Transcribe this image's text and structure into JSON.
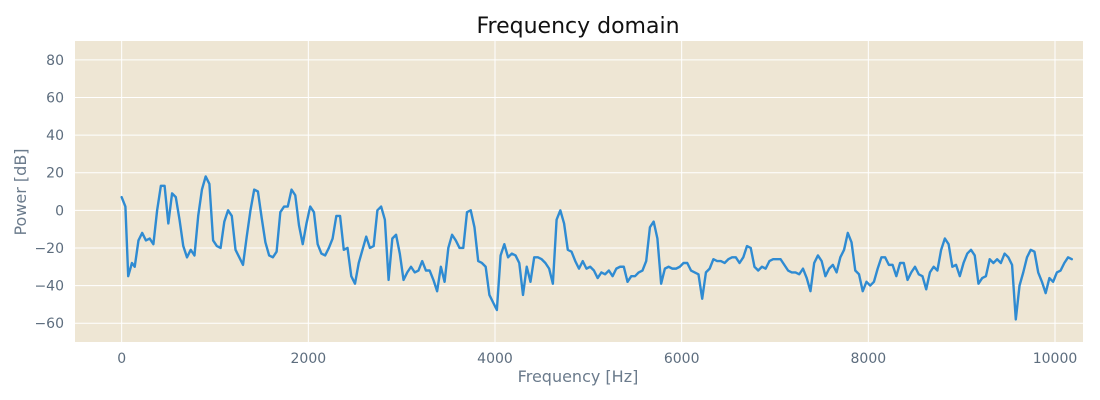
{
  "chart_data": {
    "type": "line",
    "title": "Frequency domain",
    "xlabel": "Frequency [Hz]",
    "ylabel": "Power [dB]",
    "xlim": [
      -500,
      10300
    ],
    "ylim": [
      -70,
      90
    ],
    "xticks": [
      0,
      2000,
      4000,
      6000,
      8000,
      10000
    ],
    "yticks": [
      -60,
      -40,
      -20,
      0,
      20,
      40,
      60,
      80
    ],
    "grid": true,
    "colors": {
      "background": "#eee6d4",
      "grid": "#ffffff",
      "line": "#2f8bd2"
    },
    "series": [
      {
        "values": [
          [
            0,
            7
          ],
          [
            40,
            2
          ],
          [
            70,
            -35
          ],
          [
            110,
            -28
          ],
          [
            140,
            -30
          ],
          [
            180,
            -16
          ],
          [
            220,
            -12
          ],
          [
            260,
            -16
          ],
          [
            300,
            -15
          ],
          [
            340,
            -18
          ],
          [
            380,
            0
          ],
          [
            420,
            13
          ],
          [
            460,
            13
          ],
          [
            500,
            -7
          ],
          [
            540,
            9
          ],
          [
            580,
            7
          ],
          [
            620,
            -5
          ],
          [
            660,
            -19
          ],
          [
            700,
            -25
          ],
          [
            740,
            -21
          ],
          [
            780,
            -24
          ],
          [
            820,
            -3
          ],
          [
            860,
            11
          ],
          [
            900,
            18
          ],
          [
            940,
            14
          ],
          [
            980,
            -16
          ],
          [
            1020,
            -19
          ],
          [
            1060,
            -20
          ],
          [
            1100,
            -6
          ],
          [
            1140,
            0
          ],
          [
            1180,
            -3
          ],
          [
            1220,
            -21
          ],
          [
            1260,
            -25
          ],
          [
            1300,
            -29
          ],
          [
            1340,
            -14
          ],
          [
            1380,
            0
          ],
          [
            1420,
            11
          ],
          [
            1460,
            10
          ],
          [
            1500,
            -4
          ],
          [
            1540,
            -17
          ],
          [
            1580,
            -24
          ],
          [
            1620,
            -25
          ],
          [
            1660,
            -22
          ],
          [
            1700,
            -1
          ],
          [
            1740,
            2
          ],
          [
            1780,
            2
          ],
          [
            1820,
            11
          ],
          [
            1860,
            8
          ],
          [
            1900,
            -8
          ],
          [
            1940,
            -18
          ],
          [
            1980,
            -7
          ],
          [
            2020,
            2
          ],
          [
            2060,
            -1
          ],
          [
            2100,
            -18
          ],
          [
            2140,
            -23
          ],
          [
            2180,
            -24
          ],
          [
            2220,
            -20
          ],
          [
            2260,
            -15
          ],
          [
            2300,
            -3
          ],
          [
            2340,
            -3
          ],
          [
            2380,
            -21
          ],
          [
            2420,
            -20
          ],
          [
            2460,
            -35
          ],
          [
            2500,
            -39
          ],
          [
            2540,
            -28
          ],
          [
            2580,
            -21
          ],
          [
            2620,
            -14
          ],
          [
            2660,
            -20
          ],
          [
            2700,
            -19
          ],
          [
            2740,
            0
          ],
          [
            2780,
            2
          ],
          [
            2820,
            -5
          ],
          [
            2860,
            -37
          ],
          [
            2900,
            -15
          ],
          [
            2940,
            -13
          ],
          [
            2980,
            -23
          ],
          [
            3020,
            -37
          ],
          [
            3060,
            -33
          ],
          [
            3100,
            -30
          ],
          [
            3140,
            -33
          ],
          [
            3180,
            -32
          ],
          [
            3220,
            -27
          ],
          [
            3260,
            -32
          ],
          [
            3300,
            -32
          ],
          [
            3340,
            -37
          ],
          [
            3380,
            -43
          ],
          [
            3420,
            -30
          ],
          [
            3460,
            -38
          ],
          [
            3500,
            -20
          ],
          [
            3540,
            -13
          ],
          [
            3580,
            -16
          ],
          [
            3620,
            -20
          ],
          [
            3660,
            -20
          ],
          [
            3700,
            -1
          ],
          [
            3740,
            0
          ],
          [
            3780,
            -9
          ],
          [
            3820,
            -27
          ],
          [
            3860,
            -28
          ],
          [
            3900,
            -30
          ],
          [
            3940,
            -45
          ],
          [
            3980,
            -49
          ],
          [
            4020,
            -53
          ],
          [
            4060,
            -24
          ],
          [
            4100,
            -18
          ],
          [
            4140,
            -25
          ],
          [
            4180,
            -23
          ],
          [
            4220,
            -24
          ],
          [
            4260,
            -28
          ],
          [
            4300,
            -45
          ],
          [
            4340,
            -30
          ],
          [
            4380,
            -38
          ],
          [
            4420,
            -25
          ],
          [
            4460,
            -25
          ],
          [
            4500,
            -26
          ],
          [
            4540,
            -28
          ],
          [
            4580,
            -31
          ],
          [
            4620,
            -39
          ],
          [
            4660,
            -5
          ],
          [
            4700,
            0
          ],
          [
            4740,
            -7
          ],
          [
            4780,
            -21
          ],
          [
            4820,
            -22
          ],
          [
            4860,
            -27
          ],
          [
            4900,
            -31
          ],
          [
            4940,
            -27
          ],
          [
            4980,
            -31
          ],
          [
            5020,
            -30
          ],
          [
            5060,
            -32
          ],
          [
            5100,
            -36
          ],
          [
            5140,
            -33
          ],
          [
            5180,
            -34
          ],
          [
            5220,
            -32
          ],
          [
            5260,
            -35
          ],
          [
            5300,
            -31
          ],
          [
            5340,
            -30
          ],
          [
            5380,
            -30
          ],
          [
            5420,
            -38
          ],
          [
            5460,
            -35
          ],
          [
            5500,
            -35
          ],
          [
            5540,
            -33
          ],
          [
            5580,
            -32
          ],
          [
            5620,
            -27
          ],
          [
            5660,
            -9
          ],
          [
            5700,
            -6
          ],
          [
            5740,
            -15
          ],
          [
            5780,
            -39
          ],
          [
            5820,
            -31
          ],
          [
            5860,
            -30
          ],
          [
            5900,
            -31
          ],
          [
            5940,
            -31
          ],
          [
            5980,
            -30
          ],
          [
            6020,
            -28
          ],
          [
            6060,
            -28
          ],
          [
            6100,
            -32
          ],
          [
            6140,
            -33
          ],
          [
            6180,
            -34
          ],
          [
            6220,
            -47
          ],
          [
            6260,
            -33
          ],
          [
            6300,
            -31
          ],
          [
            6340,
            -26
          ],
          [
            6380,
            -27
          ],
          [
            6420,
            -27
          ],
          [
            6460,
            -28
          ],
          [
            6500,
            -26
          ],
          [
            6540,
            -25
          ],
          [
            6580,
            -25
          ],
          [
            6620,
            -28
          ],
          [
            6660,
            -25
          ],
          [
            6700,
            -19
          ],
          [
            6740,
            -20
          ],
          [
            6780,
            -30
          ],
          [
            6820,
            -32
          ],
          [
            6860,
            -30
          ],
          [
            6900,
            -31
          ],
          [
            6940,
            -27
          ],
          [
            6980,
            -26
          ],
          [
            7020,
            -26
          ],
          [
            7060,
            -26
          ],
          [
            7100,
            -29
          ],
          [
            7140,
            -32
          ],
          [
            7180,
            -33
          ],
          [
            7220,
            -33
          ],
          [
            7260,
            -34
          ],
          [
            7300,
            -31
          ],
          [
            7340,
            -36
          ],
          [
            7380,
            -43
          ],
          [
            7420,
            -28
          ],
          [
            7460,
            -24
          ],
          [
            7500,
            -27
          ],
          [
            7540,
            -35
          ],
          [
            7580,
            -31
          ],
          [
            7620,
            -29
          ],
          [
            7660,
            -33
          ],
          [
            7700,
            -25
          ],
          [
            7740,
            -21
          ],
          [
            7780,
            -12
          ],
          [
            7820,
            -17
          ],
          [
            7860,
            -32
          ],
          [
            7900,
            -34
          ],
          [
            7940,
            -43
          ],
          [
            7980,
            -38
          ],
          [
            8020,
            -40
          ],
          [
            8060,
            -38
          ],
          [
            8100,
            -31
          ],
          [
            8140,
            -25
          ],
          [
            8180,
            -25
          ],
          [
            8220,
            -29
          ],
          [
            8260,
            -29
          ],
          [
            8300,
            -35
          ],
          [
            8340,
            -28
          ],
          [
            8380,
            -28
          ],
          [
            8420,
            -37
          ],
          [
            8460,
            -33
          ],
          [
            8500,
            -30
          ],
          [
            8540,
            -34
          ],
          [
            8580,
            -35
          ],
          [
            8620,
            -42
          ],
          [
            8660,
            -33
          ],
          [
            8700,
            -30
          ],
          [
            8740,
            -32
          ],
          [
            8780,
            -21
          ],
          [
            8820,
            -15
          ],
          [
            8860,
            -18
          ],
          [
            8900,
            -30
          ],
          [
            8940,
            -29
          ],
          [
            8980,
            -35
          ],
          [
            9020,
            -28
          ],
          [
            9060,
            -23
          ],
          [
            9100,
            -21
          ],
          [
            9140,
            -24
          ],
          [
            9180,
            -39
          ],
          [
            9220,
            -36
          ],
          [
            9260,
            -35
          ],
          [
            9300,
            -26
          ],
          [
            9340,
            -28
          ],
          [
            9380,
            -26
          ],
          [
            9420,
            -28
          ],
          [
            9460,
            -23
          ],
          [
            9500,
            -25
          ],
          [
            9540,
            -29
          ],
          [
            9580,
            -58
          ],
          [
            9620,
            -40
          ],
          [
            9660,
            -33
          ],
          [
            9700,
            -25
          ],
          [
            9740,
            -21
          ],
          [
            9780,
            -22
          ],
          [
            9820,
            -33
          ],
          [
            9860,
            -38
          ],
          [
            9900,
            -44
          ],
          [
            9940,
            -36
          ],
          [
            9980,
            -38
          ],
          [
            10020,
            -33
          ],
          [
            10060,
            -32
          ],
          [
            10100,
            -28
          ],
          [
            10140,
            -25
          ],
          [
            10180,
            -26
          ]
        ]
      }
    ]
  }
}
